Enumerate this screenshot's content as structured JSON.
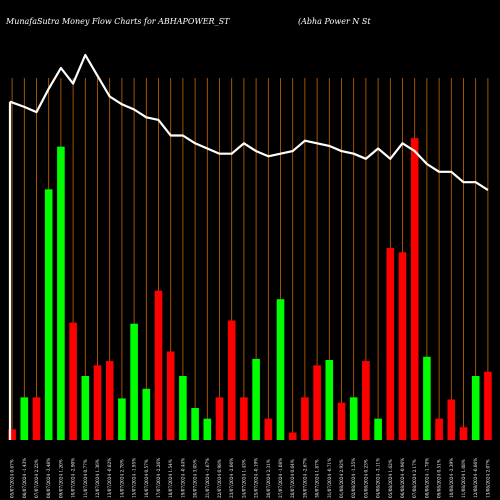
{
  "header": {
    "title": "MunafaSutra  Money Flow  Charts for ABHAPOWER_ST",
    "company": "(Abha  Power N  St"
  },
  "colors": {
    "background": "#000000",
    "grid": "#cc6600",
    "up": "#00ff00",
    "down": "#ff0000",
    "line": "#ffffff",
    "text": "#ffffff"
  },
  "chart_data": {
    "type": "bar",
    "categories": [
      "05/07/2024 0.67%",
      "06/07/2024 -1.43%",
      "07/07/2024 2.22%",
      "08/07/2024 -3.48%",
      "09/07/2024 1.20%",
      "10/07/2024 -2.90%",
      "11/07/2024 0.77%",
      "12/07/2024 1.36%",
      "13/07/2024 -0.82%",
      "14/07/2024 2.78%",
      "15/07/2024 -1.95%",
      "16/07/2024 0.57%",
      "17/07/2024 -2.26%",
      "18/07/2024 1.54%",
      "19/07/2024 -0.44%",
      "20/07/2024 3.05%",
      "21/07/2024 -1.67%",
      "22/07/2024 0.98%",
      "23/07/2024 -2.06%",
      "24/07/2024 1.43%",
      "25/07/2024 -0.19%",
      "26/07/2024 2.31%",
      "27/07/2024 -1.08%",
      "28/07/2024 0.64%",
      "29/07/2024 -2.67%",
      "30/07/2024 1.87%",
      "31/07/2024 -0.71%",
      "01/08/2024 2.92%",
      "02/08/2024 -1.35%",
      "03/08/2024 0.23%",
      "04/08/2024 -3.11%",
      "05/08/2024 1.62%",
      "06/08/2024 -0.96%",
      "07/08/2024 2.17%",
      "08/08/2024 -1.78%",
      "09/08/2024 0.51%",
      "10/08/2024 -2.39%",
      "11/08/2024 1.08%",
      "12/08/2024 -0.66%",
      "13/08/2024 2.07%"
    ],
    "directions": [
      "down",
      "up",
      "down",
      "up",
      "up",
      "down",
      "up",
      "down",
      "down",
      "up",
      "up",
      "up",
      "down",
      "down",
      "up",
      "up",
      "up",
      "down",
      "down",
      "down",
      "up",
      "down",
      "up",
      "down",
      "down",
      "down",
      "up",
      "down",
      "up",
      "down",
      "up",
      "down",
      "down",
      "down",
      "up",
      "down",
      "down",
      "down",
      "up",
      "down"
    ],
    "values": [
      10,
      40,
      40,
      235,
      275,
      110,
      60,
      70,
      74,
      39,
      109,
      48,
      140,
      83,
      60,
      30,
      20,
      40,
      112,
      40,
      76,
      20,
      132,
      7,
      40,
      70,
      75,
      35,
      40,
      74,
      20,
      180,
      176,
      283,
      78,
      20,
      38,
      12,
      60,
      64
    ],
    "price_line": [
      150,
      148,
      146,
      155,
      163,
      157,
      168,
      160,
      152,
      149,
      147,
      144,
      143,
      137,
      137,
      134,
      132,
      130,
      130,
      134,
      131,
      129,
      130,
      131,
      135,
      134,
      133,
      131,
      130,
      128,
      132,
      128,
      134,
      131,
      126,
      123,
      123,
      119,
      119,
      116
    ],
    "ylim": [
      0,
      300
    ]
  }
}
